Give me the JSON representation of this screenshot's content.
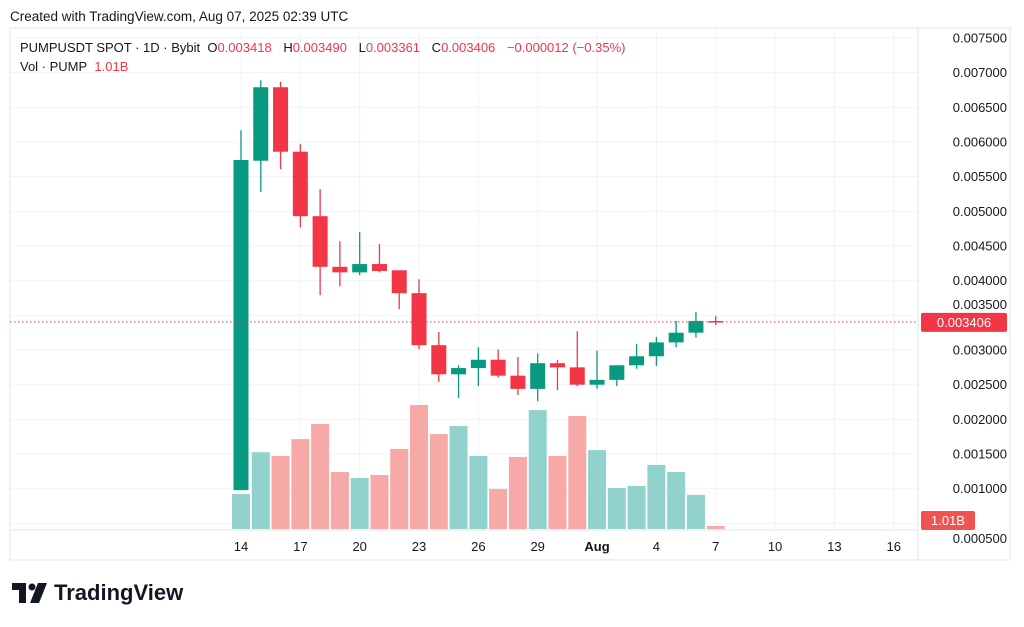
{
  "header": {
    "created": "Created with TradingView.com, Aug 07, 2025 02:39 UTC"
  },
  "legend": {
    "symbol": "PUMPUSDT SPOT · 1D · Bybit",
    "o_label": "O",
    "o": "0.003418",
    "h_label": "H",
    "h": "0.003490",
    "l_label": "L",
    "l": "0.003361",
    "c_label": "C",
    "c": "0.003406",
    "change": "−0.000012 (−0.35%)",
    "vol_label": "Vol · PUMP",
    "vol": "1.01B"
  },
  "logo": {
    "text": "TradingView"
  },
  "colors": {
    "up": "#089981",
    "down": "#f23645",
    "vol_up": "#92d2cc",
    "vol_down": "#f7a9a7"
  },
  "chart_data": {
    "type": "candlestick",
    "price_axis": {
      "ticks": [
        "0.007500",
        "0.007000",
        "0.006500",
        "0.006000",
        "0.005500",
        "0.005000",
        "0.004500",
        "0.004000",
        "0.003500",
        "0.003000",
        "0.002500",
        "0.002000",
        "0.001500",
        "0.001000",
        "0.000500"
      ],
      "range": [
        0.0005,
        0.0075
      ]
    },
    "last_price_label": "0.003406",
    "last_volume_label": "1.01B",
    "x_ticks": [
      {
        "label": "14",
        "index": 0
      },
      {
        "label": "17",
        "index": 3
      },
      {
        "label": "20",
        "index": 6
      },
      {
        "label": "23",
        "index": 9
      },
      {
        "label": "26",
        "index": 12
      },
      {
        "label": "29",
        "index": 15
      },
      {
        "label": "Aug",
        "index": 18,
        "bold": true
      },
      {
        "label": "4",
        "index": 21
      },
      {
        "label": "7",
        "index": 24
      },
      {
        "label": "10",
        "index": 27
      },
      {
        "label": "13",
        "index": 30
      },
      {
        "label": "16",
        "index": 33
      }
    ],
    "dates": [
      "Jul 14",
      "Jul 15",
      "Jul 16",
      "Jul 17",
      "Jul 18",
      "Jul 19",
      "Jul 20",
      "Jul 21",
      "Jul 22",
      "Jul 23",
      "Jul 24",
      "Jul 25",
      "Jul 26",
      "Jul 27",
      "Jul 28",
      "Jul 29",
      "Jul 30",
      "Jul 31",
      "Aug 1",
      "Aug 2",
      "Aug 3",
      "Aug 4",
      "Aug 5",
      "Aug 6",
      "Aug 7"
    ],
    "ohlc": [
      [
        0.00098,
        0.00617,
        0.00098,
        0.00574
      ],
      [
        0.00573,
        0.00689,
        0.00528,
        0.00679
      ],
      [
        0.00679,
        0.00687,
        0.00561,
        0.00586
      ],
      [
        0.00586,
        0.00597,
        0.00477,
        0.00493
      ],
      [
        0.00493,
        0.00532,
        0.00379,
        0.0042
      ],
      [
        0.0042,
        0.00457,
        0.00392,
        0.00412
      ],
      [
        0.00412,
        0.0047,
        0.00408,
        0.00424
      ],
      [
        0.00424,
        0.00453,
        0.00412,
        0.00414
      ],
      [
        0.00415,
        0.00415,
        0.00359,
        0.00382
      ],
      [
        0.00382,
        0.00402,
        0.00301,
        0.00307
      ],
      [
        0.00307,
        0.00326,
        0.00254,
        0.00265
      ],
      [
        0.00265,
        0.00278,
        0.00231,
        0.00274
      ],
      [
        0.00274,
        0.00304,
        0.00248,
        0.00286
      ],
      [
        0.00286,
        0.00301,
        0.0026,
        0.00263
      ],
      [
        0.00263,
        0.0029,
        0.00235,
        0.00244
      ],
      [
        0.00244,
        0.00295,
        0.00226,
        0.00281
      ],
      [
        0.00281,
        0.00286,
        0.00242,
        0.00275
      ],
      [
        0.00275,
        0.00327,
        0.00248,
        0.0025
      ],
      [
        0.0025,
        0.00299,
        0.00244,
        0.00257
      ],
      [
        0.00257,
        0.00278,
        0.00248,
        0.00278
      ],
      [
        0.00278,
        0.00309,
        0.00273,
        0.00291
      ],
      [
        0.00291,
        0.00319,
        0.00277,
        0.00311
      ],
      [
        0.00311,
        0.00342,
        0.00304,
        0.00325
      ],
      [
        0.00325,
        0.00355,
        0.00318,
        0.00342
      ],
      [
        0.003418,
        0.00349,
        0.003361,
        0.003406
      ]
    ],
    "volume_billions": [
      11.8,
      25.9,
      24.6,
      30.3,
      35.4,
      19.2,
      17.2,
      18.2,
      27.0,
      41.8,
      32.0,
      34.7,
      24.6,
      13.5,
      24.3,
      40.1,
      24.6,
      38.1,
      26.6,
      13.8,
      14.5,
      21.6,
      19.2,
      11.5,
      1.01
    ],
    "grid": true
  }
}
